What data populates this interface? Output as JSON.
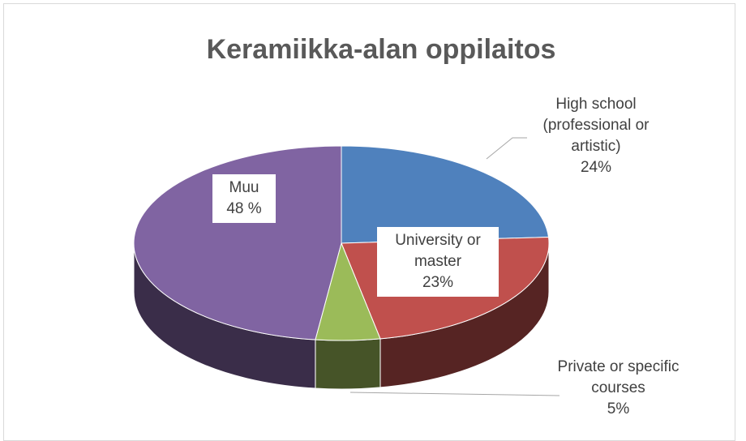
{
  "chart_data": {
    "type": "pie3d",
    "title": "Keramiikka-alan oppilaitos",
    "categories": [
      "High school (professional or artistic)",
      "University or master",
      "Private or specific courses",
      "Muu"
    ],
    "values": [
      24,
      23,
      5,
      48
    ],
    "value_labels": [
      "24%",
      "23%",
      "5%",
      "48 %"
    ],
    "colors": [
      "#4f81bd",
      "#c0504d",
      "#9bbb59",
      "#8064a2"
    ]
  }
}
